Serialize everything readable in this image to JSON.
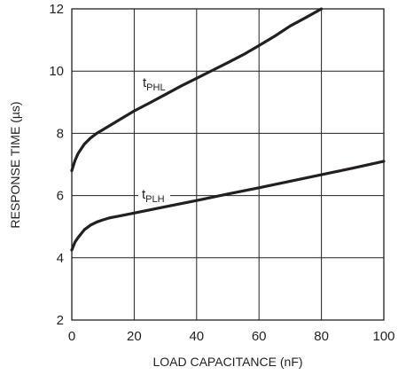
{
  "chart_data": {
    "type": "line",
    "title": "",
    "xlabel": "LOAD CAPACITANCE (nF)",
    "ylabel": "RESPONSE TIME (µs)",
    "xlim": [
      0,
      100
    ],
    "ylim": [
      2,
      12
    ],
    "xticks": [
      0,
      20,
      40,
      60,
      80,
      100
    ],
    "yticks": [
      2,
      4,
      6,
      8,
      10,
      12
    ],
    "grid": true,
    "series": [
      {
        "name_main": "t",
        "name_sub": "PHL",
        "color": "#231f20",
        "x": [
          0,
          1,
          2,
          4,
          6,
          8,
          10,
          15,
          20,
          25,
          30,
          35,
          40,
          45,
          50,
          55,
          60,
          65,
          70,
          75,
          80
        ],
        "y": [
          6.8,
          7.12,
          7.35,
          7.65,
          7.85,
          8.0,
          8.12,
          8.42,
          8.72,
          8.98,
          9.25,
          9.52,
          9.77,
          10.02,
          10.27,
          10.53,
          10.82,
          11.12,
          11.45,
          11.72,
          12.0
        ]
      },
      {
        "name_main": "t",
        "name_sub": "PLH",
        "color": "#231f20",
        "x": [
          0,
          1,
          2,
          4,
          6,
          8,
          10,
          12,
          15,
          20,
          30,
          40,
          50,
          60,
          70,
          80,
          90,
          100
        ],
        "y": [
          4.25,
          4.5,
          4.65,
          4.9,
          5.05,
          5.15,
          5.22,
          5.28,
          5.34,
          5.44,
          5.64,
          5.84,
          6.05,
          6.25,
          6.46,
          6.67,
          6.88,
          7.1
        ]
      }
    ]
  }
}
